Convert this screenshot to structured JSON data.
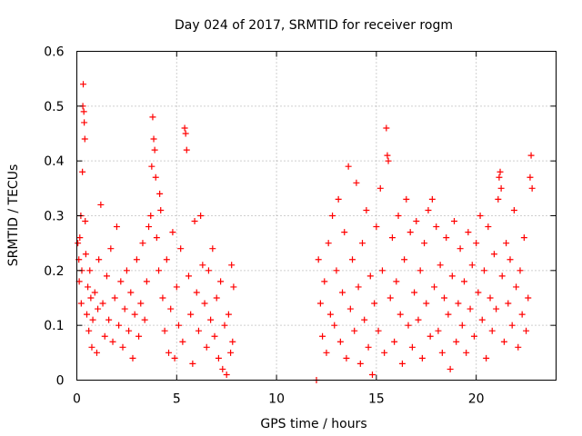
{
  "chart_data": {
    "type": "scatter",
    "title": "Day 024 of 2017, SRMTID for receiver rogm",
    "xlabel": "GPS time / hours",
    "ylabel": "SRMTID / TECUs",
    "xlim": [
      0,
      24
    ],
    "ylim": [
      0,
      0.6
    ],
    "xticks": [
      0,
      5,
      10,
      15,
      20
    ],
    "xtick_labels": [
      "0",
      "5",
      "10",
      "15",
      "20"
    ],
    "yticks": [
      0,
      0.1,
      0.2,
      0.3,
      0.4,
      0.5,
      0.6
    ],
    "ytick_labels": [
      "0",
      "0.1",
      "0.2",
      "0.3",
      "0.4",
      "0.5",
      "0.6"
    ],
    "grid": true,
    "marker": "+",
    "color": "#ff0000",
    "series": [
      {
        "name": "SRMTID",
        "points": [
          [
            0.05,
            0.25
          ],
          [
            0.1,
            0.22
          ],
          [
            0.12,
            0.18
          ],
          [
            0.15,
            0.26
          ],
          [
            0.2,
            0.3
          ],
          [
            0.22,
            0.14
          ],
          [
            0.25,
            0.2
          ],
          [
            0.28,
            0.38
          ],
          [
            0.3,
            0.5
          ],
          [
            0.32,
            0.54
          ],
          [
            0.35,
            0.49
          ],
          [
            0.37,
            0.47
          ],
          [
            0.4,
            0.44
          ],
          [
            0.42,
            0.29
          ],
          [
            0.45,
            0.23
          ],
          [
            0.5,
            0.12
          ],
          [
            0.55,
            0.17
          ],
          [
            0.6,
            0.09
          ],
          [
            0.65,
            0.2
          ],
          [
            0.7,
            0.15
          ],
          [
            0.75,
            0.06
          ],
          [
            0.8,
            0.11
          ],
          [
            0.9,
            0.16
          ],
          [
            1.0,
            0.05
          ],
          [
            1.05,
            0.13
          ],
          [
            1.1,
            0.22
          ],
          [
            1.2,
            0.32
          ],
          [
            1.3,
            0.14
          ],
          [
            1.4,
            0.08
          ],
          [
            1.5,
            0.19
          ],
          [
            1.6,
            0.11
          ],
          [
            1.7,
            0.24
          ],
          [
            1.8,
            0.07
          ],
          [
            1.9,
            0.15
          ],
          [
            2.0,
            0.28
          ],
          [
            2.1,
            0.1
          ],
          [
            2.2,
            0.18
          ],
          [
            2.3,
            0.06
          ],
          [
            2.4,
            0.13
          ],
          [
            2.5,
            0.2
          ],
          [
            2.6,
            0.09
          ],
          [
            2.7,
            0.16
          ],
          [
            2.8,
            0.04
          ],
          [
            2.9,
            0.12
          ],
          [
            3.0,
            0.22
          ],
          [
            3.1,
            0.08
          ],
          [
            3.2,
            0.14
          ],
          [
            3.3,
            0.25
          ],
          [
            3.4,
            0.11
          ],
          [
            3.5,
            0.18
          ],
          [
            3.6,
            0.28
          ],
          [
            3.7,
            0.3
          ],
          [
            3.75,
            0.39
          ],
          [
            3.8,
            0.48
          ],
          [
            3.85,
            0.44
          ],
          [
            3.9,
            0.42
          ],
          [
            3.95,
            0.37
          ],
          [
            4.0,
            0.26
          ],
          [
            4.1,
            0.2
          ],
          [
            4.15,
            0.34
          ],
          [
            4.2,
            0.31
          ],
          [
            4.3,
            0.15
          ],
          [
            4.4,
            0.09
          ],
          [
            4.5,
            0.22
          ],
          [
            4.6,
            0.05
          ],
          [
            4.7,
            0.13
          ],
          [
            4.8,
            0.27
          ],
          [
            4.9,
            0.04
          ],
          [
            5.0,
            0.17
          ],
          [
            5.1,
            0.1
          ],
          [
            5.2,
            0.24
          ],
          [
            5.3,
            0.07
          ],
          [
            5.4,
            0.46
          ],
          [
            5.45,
            0.45
          ],
          [
            5.5,
            0.42
          ],
          [
            5.6,
            0.19
          ],
          [
            5.7,
            0.12
          ],
          [
            5.8,
            0.03
          ],
          [
            5.9,
            0.29
          ],
          [
            6.0,
            0.16
          ],
          [
            6.1,
            0.09
          ],
          [
            6.2,
            0.3
          ],
          [
            6.3,
            0.21
          ],
          [
            6.4,
            0.14
          ],
          [
            6.5,
            0.06
          ],
          [
            6.6,
            0.2
          ],
          [
            6.7,
            0.11
          ],
          [
            6.8,
            0.24
          ],
          [
            6.9,
            0.08
          ],
          [
            7.0,
            0.15
          ],
          [
            7.1,
            0.04
          ],
          [
            7.2,
            0.18
          ],
          [
            7.3,
            0.02
          ],
          [
            7.4,
            0.1
          ],
          [
            7.5,
            0.01
          ],
          [
            7.6,
            0.12
          ],
          [
            7.7,
            0.05
          ],
          [
            7.75,
            0.21
          ],
          [
            7.8,
            0.07
          ],
          [
            7.85,
            0.17
          ],
          [
            12.0,
            0.0
          ],
          [
            12.1,
            0.22
          ],
          [
            12.2,
            0.14
          ],
          [
            12.3,
            0.08
          ],
          [
            12.4,
            0.18
          ],
          [
            12.5,
            0.05
          ],
          [
            12.6,
            0.25
          ],
          [
            12.7,
            0.12
          ],
          [
            12.8,
            0.3
          ],
          [
            12.9,
            0.1
          ],
          [
            13.0,
            0.2
          ],
          [
            13.1,
            0.33
          ],
          [
            13.2,
            0.07
          ],
          [
            13.3,
            0.16
          ],
          [
            13.4,
            0.27
          ],
          [
            13.5,
            0.04
          ],
          [
            13.6,
            0.39
          ],
          [
            13.7,
            0.13
          ],
          [
            13.8,
            0.22
          ],
          [
            13.9,
            0.09
          ],
          [
            14.0,
            0.36
          ],
          [
            14.1,
            0.17
          ],
          [
            14.2,
            0.03
          ],
          [
            14.3,
            0.25
          ],
          [
            14.4,
            0.11
          ],
          [
            14.5,
            0.31
          ],
          [
            14.6,
            0.06
          ],
          [
            14.7,
            0.19
          ],
          [
            14.8,
            0.01
          ],
          [
            14.9,
            0.14
          ],
          [
            15.0,
            0.28
          ],
          [
            15.1,
            0.09
          ],
          [
            15.2,
            0.35
          ],
          [
            15.3,
            0.2
          ],
          [
            15.4,
            0.05
          ],
          [
            15.5,
            0.46
          ],
          [
            15.55,
            0.41
          ],
          [
            15.6,
            0.4
          ],
          [
            15.7,
            0.15
          ],
          [
            15.8,
            0.26
          ],
          [
            15.9,
            0.07
          ],
          [
            16.0,
            0.18
          ],
          [
            16.1,
            0.3
          ],
          [
            16.2,
            0.12
          ],
          [
            16.3,
            0.03
          ],
          [
            16.4,
            0.22
          ],
          [
            16.5,
            0.33
          ],
          [
            16.6,
            0.1
          ],
          [
            16.7,
            0.27
          ],
          [
            16.8,
            0.06
          ],
          [
            16.9,
            0.16
          ],
          [
            17.0,
            0.29
          ],
          [
            17.1,
            0.11
          ],
          [
            17.2,
            0.2
          ],
          [
            17.3,
            0.04
          ],
          [
            17.4,
            0.25
          ],
          [
            17.5,
            0.14
          ],
          [
            17.6,
            0.31
          ],
          [
            17.7,
            0.08
          ],
          [
            17.8,
            0.33
          ],
          [
            17.9,
            0.17
          ],
          [
            18.0,
            0.28
          ],
          [
            18.1,
            0.09
          ],
          [
            18.2,
            0.21
          ],
          [
            18.3,
            0.05
          ],
          [
            18.4,
            0.15
          ],
          [
            18.5,
            0.26
          ],
          [
            18.6,
            0.12
          ],
          [
            18.7,
            0.02
          ],
          [
            18.8,
            0.19
          ],
          [
            18.9,
            0.29
          ],
          [
            19.0,
            0.07
          ],
          [
            19.1,
            0.14
          ],
          [
            19.2,
            0.24
          ],
          [
            19.3,
            0.1
          ],
          [
            19.4,
            0.18
          ],
          [
            19.5,
            0.05
          ],
          [
            19.6,
            0.27
          ],
          [
            19.7,
            0.13
          ],
          [
            19.8,
            0.21
          ],
          [
            19.9,
            0.08
          ],
          [
            20.0,
            0.25
          ],
          [
            20.1,
            0.16
          ],
          [
            20.2,
            0.3
          ],
          [
            20.3,
            0.11
          ],
          [
            20.4,
            0.2
          ],
          [
            20.5,
            0.04
          ],
          [
            20.6,
            0.28
          ],
          [
            20.7,
            0.15
          ],
          [
            20.8,
            0.09
          ],
          [
            20.9,
            0.23
          ],
          [
            21.0,
            0.13
          ],
          [
            21.1,
            0.33
          ],
          [
            21.15,
            0.37
          ],
          [
            21.2,
            0.38
          ],
          [
            21.25,
            0.35
          ],
          [
            21.3,
            0.19
          ],
          [
            21.4,
            0.07
          ],
          [
            21.5,
            0.25
          ],
          [
            21.6,
            0.14
          ],
          [
            21.7,
            0.22
          ],
          [
            21.8,
            0.1
          ],
          [
            21.9,
            0.31
          ],
          [
            22.0,
            0.17
          ],
          [
            22.1,
            0.06
          ],
          [
            22.2,
            0.2
          ],
          [
            22.3,
            0.12
          ],
          [
            22.4,
            0.26
          ],
          [
            22.5,
            0.09
          ],
          [
            22.6,
            0.15
          ],
          [
            22.7,
            0.37
          ],
          [
            22.75,
            0.41
          ],
          [
            22.8,
            0.35
          ]
        ]
      }
    ]
  }
}
